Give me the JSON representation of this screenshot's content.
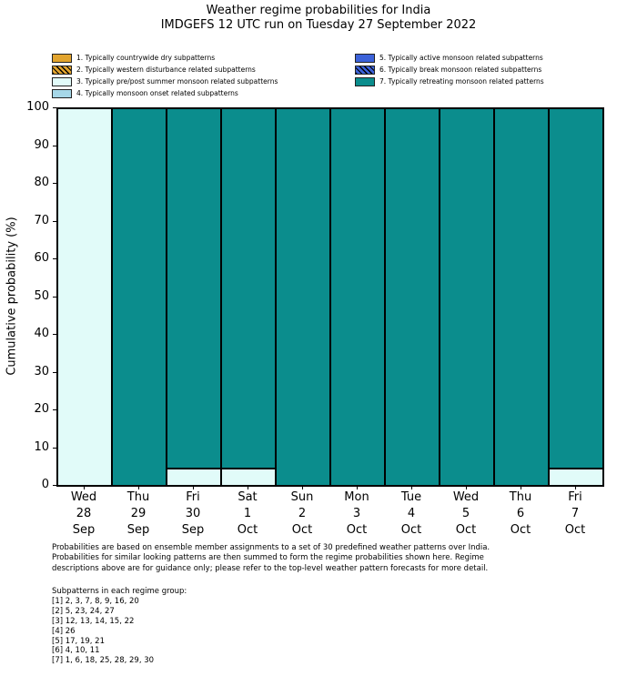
{
  "title": {
    "line1": "Weather regime probabilities for India",
    "line2": "IMDGEFS 12 UTC run on Tuesday 27 September 2022"
  },
  "legend": {
    "items": [
      {
        "label": "1. Typically countrywide dry subpatterns",
        "color": "#e2a42e",
        "hatch": false
      },
      {
        "label": "2. Typically western disturbance related subpatterns",
        "color": "#e2a42e",
        "hatch": true
      },
      {
        "label": "3. Typically pre/post summer monsoon related subpatterns",
        "color": "#e1fbf9",
        "hatch": false
      },
      {
        "label": "4. Typically monsoon onset related subpatterns",
        "color": "#a6d7e8",
        "hatch": false
      },
      {
        "label": "5. Typically active monsoon related subpatterns",
        "color": "#3c62d9",
        "hatch": false
      },
      {
        "label": "6. Typically break monsoon related subpatterns",
        "color": "#3c62d9",
        "hatch": true
      },
      {
        "label": "7. Typically retreating monsoon related patterns",
        "color": "#0b8d8d",
        "hatch": false
      }
    ]
  },
  "chart_data": {
    "type": "bar",
    "stacked": true,
    "title": "Weather regime probabilities for India",
    "subtitle": "IMDGEFS 12 UTC run on Tuesday 27 September 2022",
    "xlabel": "",
    "ylabel": "Cumulative probability (%)",
    "ylim": [
      0,
      100
    ],
    "yticks": [
      0,
      10,
      20,
      30,
      40,
      50,
      60,
      70,
      80,
      90,
      100
    ],
    "grid": false,
    "legend_position": "top",
    "categories": [
      [
        "Wed",
        "28",
        "Sep"
      ],
      [
        "Thu",
        "29",
        "Sep"
      ],
      [
        "Fri",
        "30",
        "Sep"
      ],
      [
        "Sat",
        "1",
        "Oct"
      ],
      [
        "Sun",
        "2",
        "Oct"
      ],
      [
        "Mon",
        "3",
        "Oct"
      ],
      [
        "Tue",
        "4",
        "Oct"
      ],
      [
        "Wed",
        "5",
        "Oct"
      ],
      [
        "Thu",
        "6",
        "Oct"
      ],
      [
        "Fri",
        "7",
        "Oct"
      ]
    ],
    "series": [
      {
        "name": "1. Typically countrywide dry subpatterns",
        "color": "#e2a42e",
        "hatch": false,
        "values": [
          0,
          0,
          0,
          0,
          0,
          0,
          0,
          0,
          0,
          0
        ]
      },
      {
        "name": "2. Typically western disturbance related subpatterns",
        "color": "#e2a42e",
        "hatch": true,
        "values": [
          0,
          0,
          0,
          0,
          0,
          0,
          0,
          0,
          0,
          0
        ]
      },
      {
        "name": "3. Typically pre/post summer monsoon related subpatterns",
        "color": "#e1fbf9",
        "hatch": false,
        "values": [
          100,
          0,
          4.5,
          4.5,
          0,
          0,
          0,
          0,
          0,
          4.5
        ]
      },
      {
        "name": "4. Typically monsoon onset related subpatterns",
        "color": "#a6d7e8",
        "hatch": false,
        "values": [
          0,
          0,
          0,
          0,
          0,
          0,
          0,
          0,
          0,
          0
        ]
      },
      {
        "name": "5. Typically active monsoon related subpatterns",
        "color": "#3c62d9",
        "hatch": false,
        "values": [
          0,
          0,
          0,
          0,
          0,
          0,
          0,
          0,
          0,
          0
        ]
      },
      {
        "name": "6. Typically break monsoon related subpatterns",
        "color": "#3c62d9",
        "hatch": true,
        "values": [
          0,
          0,
          0,
          0,
          0,
          0,
          0,
          0,
          0,
          0
        ]
      },
      {
        "name": "7. Typically retreating monsoon related patterns",
        "color": "#0b8d8d",
        "hatch": false,
        "values": [
          0,
          100,
          95.5,
          95.5,
          100,
          100,
          100,
          100,
          100,
          95.5
        ]
      }
    ]
  },
  "footnote": {
    "lines": [
      "Probabilities are based on ensemble member assignments to a set of 30 predefined weather patterns over India.",
      "Probabilities for similar looking patterns are then summed to form the regime probabilities shown here. Regime",
      "descriptions above are for guidance only; please refer to the top-level weather pattern forecasts for more detail."
    ]
  },
  "subpatterns": {
    "header": "Subpatterns in each regime group:",
    "lines": [
      "[1] 2, 3, 7, 8, 9, 16, 20",
      "[2] 5, 23, 24, 27",
      "[3] 12, 13, 14, 15, 22",
      "[4] 26",
      "[5] 17, 19, 21",
      "[6] 4, 10, 11",
      "[7] 1, 6, 18, 25, 28, 29, 30"
    ]
  }
}
